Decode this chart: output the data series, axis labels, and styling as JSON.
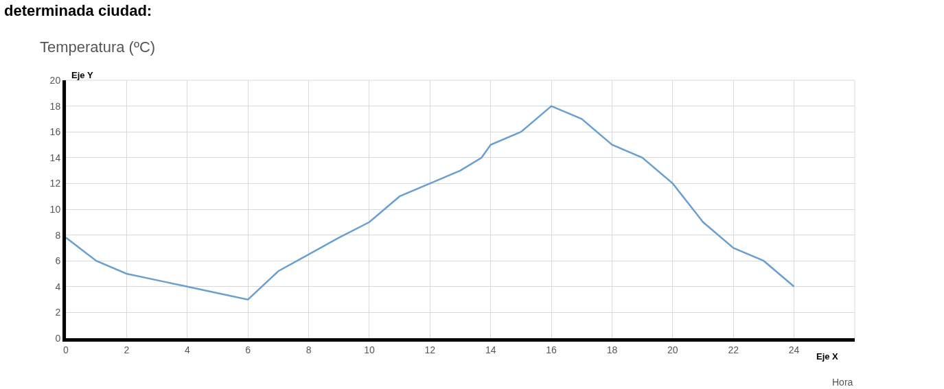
{
  "chart_data": {
    "type": "line",
    "title": "determinada ciudad:",
    "ylabel": "Temperatura (ºC)",
    "xlabel": "Hora",
    "annotations": [
      "Eje Y",
      "Eje X"
    ],
    "x": [
      0,
      1,
      2,
      3,
      4,
      5,
      6,
      7,
      8,
      9,
      10,
      11,
      12,
      13,
      13.7,
      14,
      15,
      16,
      17,
      18,
      19,
      20,
      21,
      22,
      23,
      24
    ],
    "series": [
      {
        "color": "#6a9fd0",
        "values": [
          7.8,
          6,
          5,
          4.5,
          4,
          3.5,
          3,
          5.2,
          6.5,
          7.8,
          9,
          11,
          12,
          13,
          14,
          15,
          16,
          18,
          17,
          15,
          14,
          12,
          9,
          7,
          6,
          4
        ]
      }
    ],
    "xlim": [
      0,
      26
    ],
    "xticks": [
      0,
      2,
      4,
      6,
      8,
      10,
      12,
      14,
      16,
      18,
      20,
      22,
      24
    ],
    "ylim": [
      0,
      20
    ],
    "yticks": [
      0,
      2,
      4,
      6,
      8,
      10,
      12,
      14,
      16,
      18,
      20
    ],
    "grid": true,
    "marker": "none",
    "line_style": "solid"
  }
}
